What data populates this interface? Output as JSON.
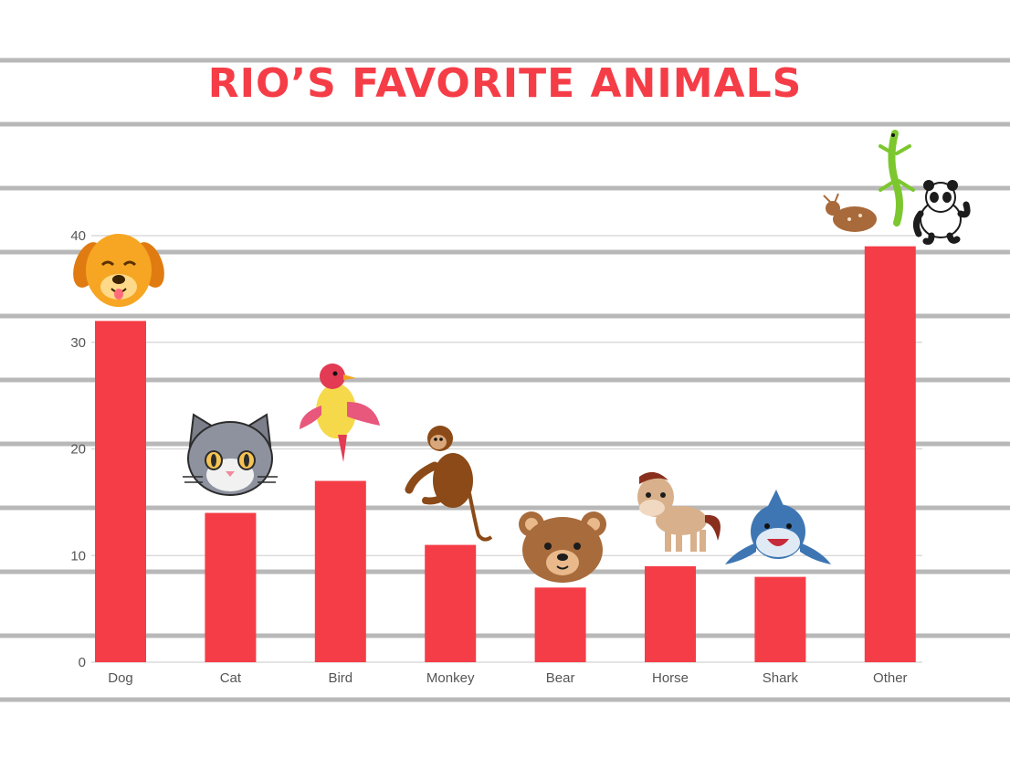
{
  "title": "RIO’S FAVORITE ANIMALS",
  "colors": {
    "bar": "#f53d47",
    "title": "#f53d47",
    "stripe": "#b8b8b8",
    "grid": "#d4d4d4",
    "axis_text": "#555555"
  },
  "chart_data": {
    "type": "bar",
    "title": "RIO’S FAVORITE ANIMALS",
    "xlabel": "",
    "ylabel": "",
    "categories": [
      "Dog",
      "Cat",
      "Bird",
      "Monkey",
      "Bear",
      "Horse",
      "Shark",
      "Other"
    ],
    "values": [
      32,
      14,
      17,
      11,
      7,
      9,
      8,
      39
    ],
    "yticks": [
      "0",
      "10",
      "20",
      "30",
      "40"
    ],
    "ylim": [
      0,
      40
    ],
    "grid": true,
    "legend": "none",
    "icons": [
      "dog-face-icon",
      "cat-face-icon",
      "bird-icon",
      "monkey-icon",
      "bear-face-icon",
      "horse-icon",
      "shark-icon",
      [
        "deer-icon",
        "lizard-icon",
        "panda-icon"
      ]
    ]
  }
}
